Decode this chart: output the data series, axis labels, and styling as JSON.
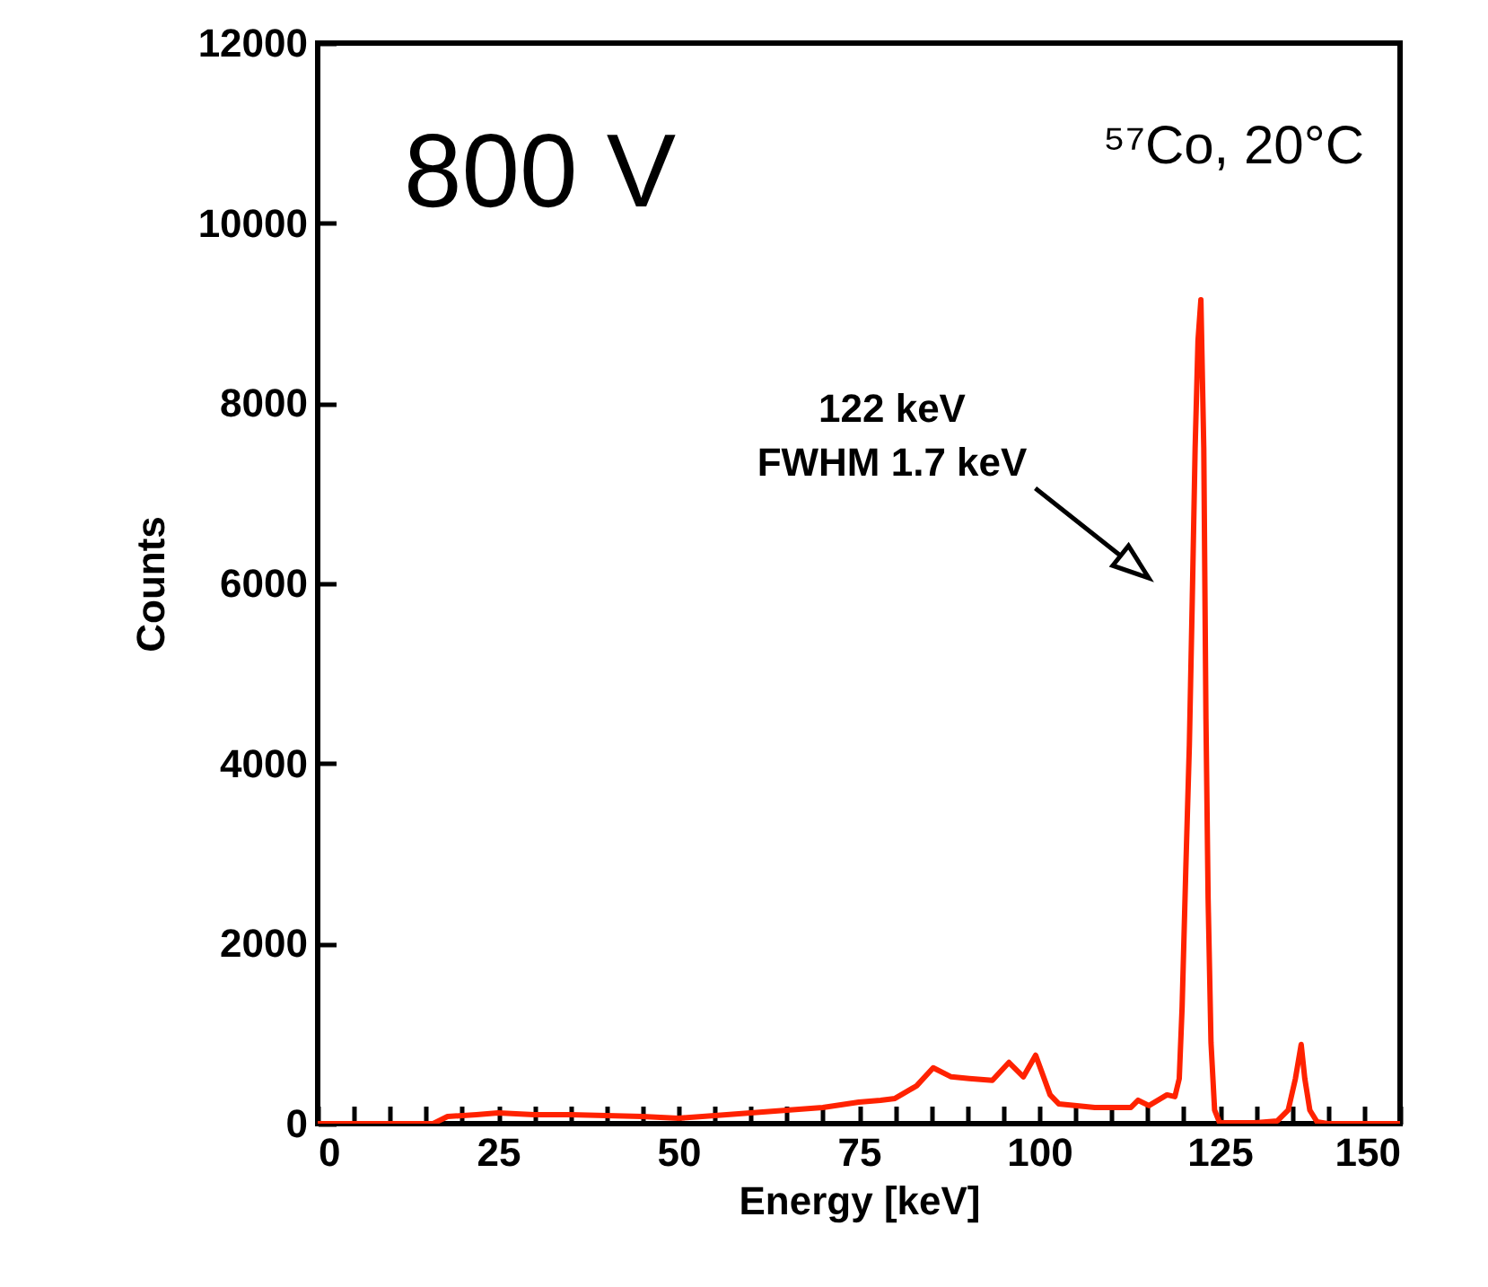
{
  "chart_data": {
    "type": "line",
    "xlabel": "Energy [keV]",
    "ylabel": "Counts",
    "x": [
      0,
      10,
      16,
      18,
      22,
      25,
      30,
      35,
      40,
      45,
      50,
      55,
      60,
      65,
      70,
      75,
      78,
      80,
      83,
      85.3,
      87.8,
      90.3,
      93.5,
      95.8,
      97.8,
      99.5,
      101.5,
      102.7,
      107.7,
      112.7,
      113.7,
      115.2,
      117.7,
      118.8,
      119.4,
      119.8,
      120.3,
      120.8,
      121.2,
      121.6,
      122,
      122.4,
      122.8,
      123.1,
      123.4,
      123.8,
      124.3,
      125,
      130,
      133,
      134.5,
      135.5,
      136.3,
      136.8,
      137.5,
      138.5,
      140,
      150
    ],
    "values": [
      0,
      0,
      0,
      80,
      100,
      120,
      100,
      100,
      90,
      80,
      60,
      90,
      120,
      150,
      180,
      240,
      260,
      280,
      420,
      620,
      520,
      500,
      480,
      680,
      520,
      760,
      320,
      220,
      180,
      180,
      260,
      200,
      320,
      300,
      500,
      1300,
      2800,
      4200,
      5800,
      7500,
      8700,
      9150,
      7500,
      4500,
      2500,
      900,
      150,
      10,
      10,
      30,
      150,
      500,
      880,
      500,
      150,
      20,
      0,
      0
    ],
    "color": "#ff2200",
    "xlim": [
      0,
      150
    ],
    "ylim": [
      0,
      12000
    ],
    "xticks": [
      0,
      {
        "value": 5,
        "label": null
      },
      {
        "value": 10,
        "label": null
      },
      {
        "value": 15,
        "label": null
      },
      {
        "value": 20,
        "label": null
      },
      25,
      {
        "value": 30,
        "label": null
      },
      {
        "value": 35,
        "label": null
      },
      {
        "value": 40,
        "label": null
      },
      {
        "value": 45,
        "label": null
      },
      50,
      {
        "value": 55,
        "label": null
      },
      {
        "value": 60,
        "label": null
      },
      {
        "value": 65,
        "label": null
      },
      {
        "value": 70,
        "label": null
      },
      75,
      {
        "value": 80,
        "label": null
      },
      {
        "value": 85,
        "label": null
      },
      {
        "value": 90,
        "label": null
      },
      {
        "value": 95,
        "label": null
      },
      100,
      {
        "value": 105,
        "label": null
      },
      {
        "value": 110,
        "label": null
      },
      {
        "value": 115,
        "label": null
      },
      {
        "value": 120,
        "label": null
      },
      125,
      {
        "value": 130,
        "label": null
      },
      {
        "value": 135,
        "label": null
      },
      {
        "value": 140,
        "label": null
      },
      {
        "value": 145,
        "label": null
      },
      150
    ],
    "yticks": [
      0,
      2000,
      4000,
      6000,
      8000,
      10000,
      12000
    ],
    "grid": false,
    "line_style": "solid",
    "marker": "none",
    "annotations": [
      "800 V",
      "⁵⁷Co, 20°C",
      "122 keV\nFWHM 1.7 keV"
    ]
  }
}
